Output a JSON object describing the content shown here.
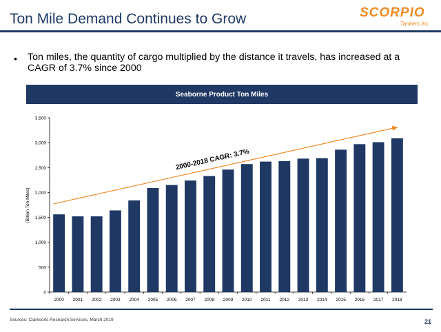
{
  "slide": {
    "title": "Ton Mile Demand Continues to Grow",
    "bullet_marker": "•",
    "bullet": "Ton miles, the quantity of cargo multiplied by the distance it travels, has increased at a CAGR of 3.7% since 2000",
    "source": "Sources: Clarksons Research Services, March 2019",
    "page_number": "21"
  },
  "logo": {
    "word": "SCORPIO",
    "sub": "Tankers Inc."
  },
  "colors": {
    "bar": "#1f3864",
    "trend": "#f08a24",
    "accent": "#1f3864"
  },
  "chart_data": {
    "type": "bar",
    "title": "Seaborne Product Ton Miles",
    "ylabel": "(Billion Ton Miles)",
    "xlabel": "",
    "categories": [
      "2000",
      "2001",
      "2002",
      "2003",
      "2004",
      "2005",
      "2006",
      "2007",
      "2008",
      "2009",
      "2010",
      "2011",
      "2012",
      "2013",
      "2014",
      "2015",
      "2016",
      "2017",
      "2018"
    ],
    "values": [
      1560,
      1520,
      1520,
      1640,
      1840,
      2090,
      2150,
      2240,
      2330,
      2460,
      2570,
      2620,
      2630,
      2680,
      2690,
      2860,
      2970,
      3010,
      3090
    ],
    "ylim": [
      0,
      3500
    ],
    "yticks": [
      0,
      500,
      1000,
      1500,
      2000,
      2500,
      3000,
      3500
    ],
    "ytick_labels": [
      "0",
      "500",
      "1,000",
      "1,500",
      "2,000",
      "2,500",
      "3,000",
      "3,500"
    ],
    "trend": {
      "label": "2000-2018 CAGR: 3.7%",
      "start": 1770,
      "end": 3310
    },
    "grid": false,
    "legend": "none"
  }
}
